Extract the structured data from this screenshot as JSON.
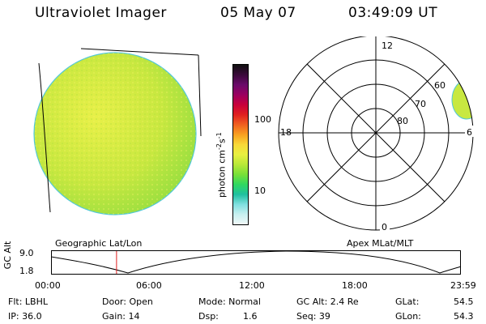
{
  "header": {
    "instrument": "Ultraviolet Imager",
    "date": "05 May 07",
    "time": "03:49:09 UT"
  },
  "left_map": {
    "projection_label": "Geographic Lat/Lon"
  },
  "colorbar": {
    "unit_label": "photon cm",
    "unit_sup1": "-2",
    "unit_mid": "s",
    "unit_sup2": "-1",
    "ticks": [
      "100",
      "10"
    ],
    "colors": [
      "#101010",
      "#3a0a3a",
      "#6a0a6a",
      "#9a0060",
      "#c8003a",
      "#e02020",
      "#f06020",
      "#f8a020",
      "#f8d838",
      "#e8f040",
      "#b8e838",
      "#78e038",
      "#30d860",
      "#20c0a0",
      "#80e0e0",
      "#c8f0f0",
      "#f0f8f8"
    ]
  },
  "polar_plot": {
    "projection_label": "Apex MLat/MLT",
    "mlt_labels": {
      "top": "12",
      "bottom": "0",
      "left": "18",
      "right": "6"
    },
    "lat_labels": [
      "60",
      "70",
      "80"
    ]
  },
  "orbit_plot": {
    "ylabel": "GC Alt",
    "ytick_top": "9.0",
    "ytick_bottom": "1.8",
    "xticks": [
      "00:00",
      "06:00",
      "12:00",
      "18:00",
      "23:59"
    ],
    "current_time_marker_hours": 3.82
  },
  "info": {
    "filter": "Flt: LBHL",
    "ip": "IP: 36.0",
    "door": "Door: Open",
    "gain": "Gain: 14",
    "mode": "Mode: Normal",
    "dsp_label": "Dsp:",
    "dsp_value": "1.6",
    "gc_alt": "GC Alt: 2.4 Re",
    "seq": "Seq: 39",
    "glat_label": "GLat:",
    "glat_value": "54.5",
    "glon_label": "GLon:",
    "glon_value": "54.3"
  }
}
